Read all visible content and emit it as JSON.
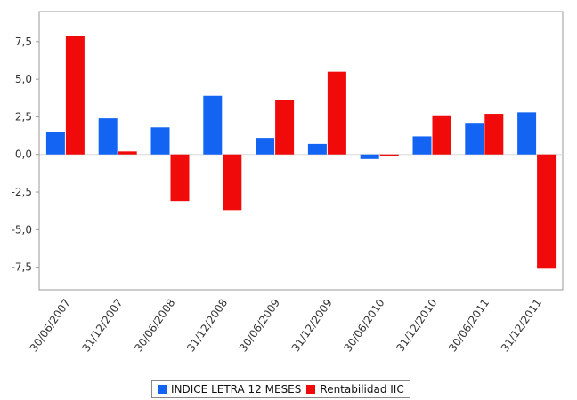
{
  "chart_data": {
    "type": "bar",
    "categories": [
      "30/06/2007",
      "31/12/2007",
      "30/06/2008",
      "31/12/2008",
      "30/06/2009",
      "31/12/2009",
      "30/06/2010",
      "31/12/2010",
      "30/06/2011",
      "31/12/2011"
    ],
    "series": [
      {
        "name": "INDICE LETRA 12 MESES",
        "color": "#1464f4",
        "values": [
          1.5,
          2.4,
          1.8,
          3.9,
          1.1,
          0.7,
          -0.3,
          1.2,
          2.1,
          2.8
        ]
      },
      {
        "name": "Rentabilidad IIC",
        "color": "#f00a0a",
        "values": [
          7.9,
          0.2,
          -3.1,
          -3.7,
          3.6,
          5.5,
          -0.1,
          2.6,
          2.7,
          -7.6
        ]
      }
    ],
    "yticks": [
      "7,5",
      "5,0",
      "2,5",
      "0,0",
      "-2,5",
      "-5,0",
      "-7,5"
    ],
    "ytick_values": [
      7.5,
      5.0,
      2.5,
      0.0,
      -2.5,
      -5.0,
      -7.5
    ],
    "ylim": [
      -9.0,
      9.5
    ],
    "grid": false,
    "legend_position": "bottom",
    "title": "",
    "xlabel": "",
    "ylabel": ""
  }
}
